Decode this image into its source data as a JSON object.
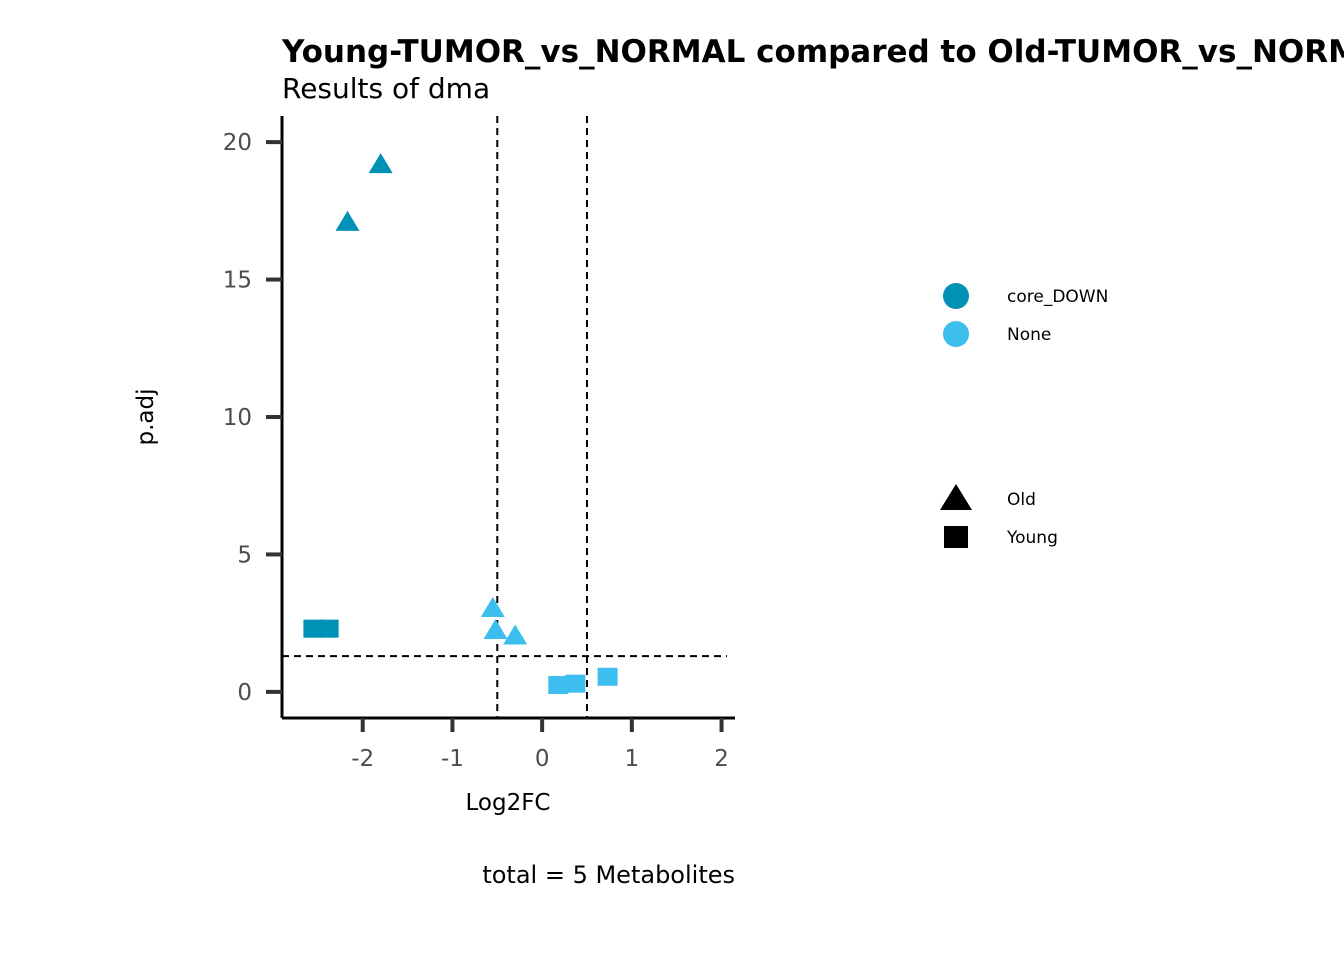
{
  "chart_data": {
    "type": "scatter",
    "title": "Young-TUMOR_vs_NORMAL compared to Old-TUMOR_vs_NORMAL",
    "subtitle": "Results of dma",
    "xlabel": "Log2FC",
    "ylabel": "p.adj",
    "caption": "total = 5 Metabolites",
    "xlim": [
      -2.9,
      2.15
    ],
    "ylim": [
      -0.95,
      20.95
    ],
    "xticks": [
      -2,
      -1,
      0,
      1,
      2
    ],
    "xtick_labels": [
      "-2",
      "-1",
      "0",
      "1",
      "2"
    ],
    "yticks": [
      0,
      5,
      10,
      15,
      20
    ],
    "ytick_labels": [
      "0",
      "5",
      "10",
      "15",
      "20"
    ],
    "vlines": [
      -0.5,
      0.5
    ],
    "hlines": [
      1.3
    ],
    "grid": false,
    "legend_position": "right",
    "color_legend": [
      {
        "label": "core_DOWN",
        "color": "#0092B6"
      },
      {
        "label": "None",
        "color": "#3CBFEE"
      }
    ],
    "shape_legend": [
      {
        "label": "Old",
        "shape": "triangle"
      },
      {
        "label": "Young",
        "shape": "square"
      }
    ],
    "points": [
      {
        "x": -1.8,
        "y": 19.2,
        "group": "Old",
        "color_group": "core_DOWN"
      },
      {
        "x": -2.17,
        "y": 17.1,
        "group": "Old",
        "color_group": "core_DOWN"
      },
      {
        "x": -2.55,
        "y": 2.3,
        "group": "Young",
        "color_group": "core_DOWN"
      },
      {
        "x": -2.38,
        "y": 2.3,
        "group": "Young",
        "color_group": "core_DOWN"
      },
      {
        "x": -0.55,
        "y": 3.05,
        "group": "Old",
        "color_group": "None"
      },
      {
        "x": -0.52,
        "y": 2.25,
        "group": "Old",
        "color_group": "None"
      },
      {
        "x": -0.3,
        "y": 2.05,
        "group": "Old",
        "color_group": "None"
      },
      {
        "x": 0.18,
        "y": 0.25,
        "group": "Young",
        "color_group": "None"
      },
      {
        "x": 0.37,
        "y": 0.3,
        "group": "Young",
        "color_group": "None"
      },
      {
        "x": 0.73,
        "y": 0.55,
        "group": "Young",
        "color_group": "None"
      }
    ]
  }
}
